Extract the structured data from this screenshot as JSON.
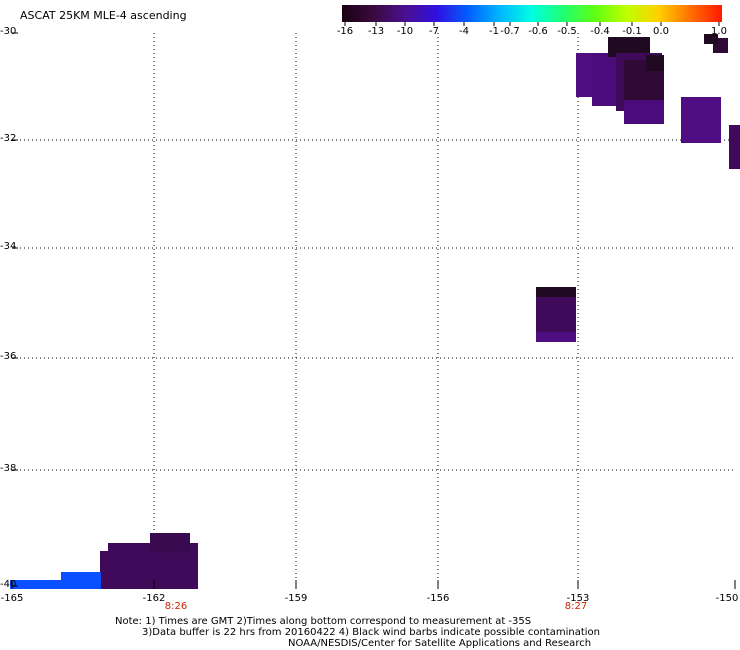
{
  "title": "ASCAT 25KM MLE-4 ascending",
  "colorbar": {
    "ticks": [
      "-16",
      "-13",
      "-10",
      "-7",
      "-4",
      "-1",
      "-0.7",
      "-0.6",
      "-0.5",
      "-0.4",
      "-0.1",
      "0.0",
      "1.0"
    ],
    "colors": [
      "#1a0010",
      "#3a0a40",
      "#4a1090",
      "#3010e0",
      "#0060ff",
      "#00b8ff",
      "#00ffe0",
      "#20ff70",
      "#60ff10",
      "#c0ff00",
      "#ffd000",
      "#ff7000",
      "#ff1800"
    ]
  },
  "map": {
    "lat_labels": [
      "-30",
      "-32",
      "-34",
      "-36",
      "-38",
      "-40"
    ],
    "lon_labels": [
      "-165",
      "-162",
      "-159",
      "-156",
      "-153",
      "-150"
    ],
    "time_labels": [
      "8:26",
      "8:27"
    ],
    "fill_colors": {
      "very_dark": "#1f0a22",
      "dark": "#2f0a36",
      "medium": "#3f0a5a",
      "purple": "#4f0d82",
      "blue": "#0a50ff"
    }
  },
  "notes": [
    "Note: 1) Times are GMT 2)Times along bottom correspond to measurement at -35S",
    "3)Data buffer is 22 hrs from 20160422 4) Black wind barbs indicate possible contamination",
    "NOAA/NESDIS/Center for Satellite Applications and Research"
  ]
}
